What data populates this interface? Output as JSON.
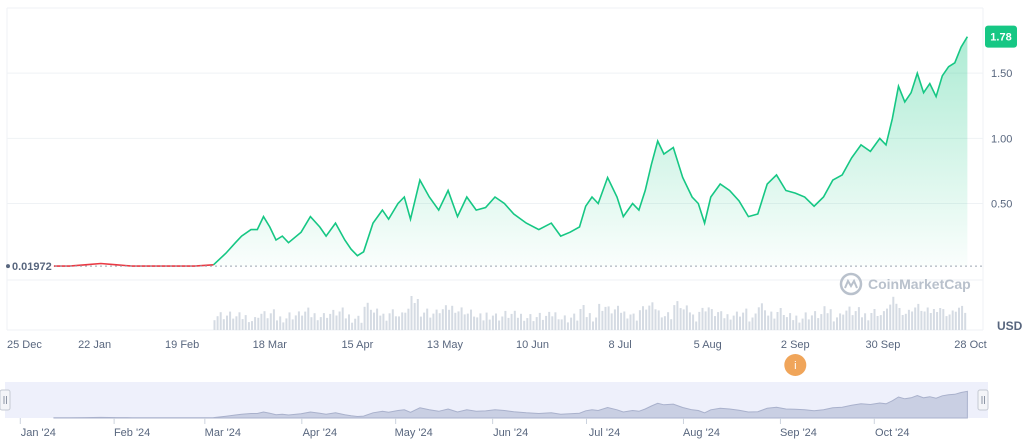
{
  "watermark": "CoinMarketCap",
  "colors": {
    "up": "#16c784",
    "down": "#ea3943",
    "grid": "#eff2f5",
    "volume": "#d5dbe3",
    "navigator_bg": "#eef0fb",
    "info_badge": "#f0a55a"
  },
  "info_badge_icon": "i",
  "info_badge_date": "2 Sep",
  "chart_data": {
    "type": "area",
    "unit": "USD",
    "start_price_label": "0.01972",
    "current_price_label": "1.78",
    "current_price": 1.78,
    "reference_price": 0.01972,
    "y_ticks": [
      "0.50",
      "1.00",
      "1.50"
    ],
    "y_tick_values": [
      0.5,
      1.0,
      1.5
    ],
    "ylim": [
      -0.47,
      2.0
    ],
    "x_tick_labels": [
      "25 Dec",
      "22 Jan",
      "19 Feb",
      "18 Mar",
      "15 Apr",
      "13 May",
      "10 Jun",
      "8 Jul",
      "5 Aug",
      "2 Sep",
      "30 Sep",
      "28 Oct"
    ],
    "x_tick_days": [
      0,
      28,
      56,
      84,
      112,
      140,
      168,
      196,
      224,
      252,
      280,
      308
    ],
    "x_range_days": [
      0,
      312
    ],
    "navigator_labels": [
      "Jan '24",
      "Feb '24",
      "Mar '24",
      "Apr '24",
      "May '24",
      "Jun '24",
      "Jul '24",
      "Aug '24",
      "Sep '24",
      "Oct '24"
    ],
    "navigator_days": [
      10,
      40,
      69,
      100,
      130,
      161,
      191,
      222,
      253,
      283
    ],
    "series": [
      {
        "points": [
          [
            15,
            0.02
          ],
          [
            20,
            0.02
          ],
          [
            25,
            0.03
          ],
          [
            30,
            0.04
          ],
          [
            35,
            0.03
          ],
          [
            40,
            0.02
          ],
          [
            45,
            0.02
          ],
          [
            50,
            0.02
          ],
          [
            55,
            0.02
          ],
          [
            60,
            0.02
          ],
          [
            66,
            0.03
          ],
          [
            70,
            0.12
          ],
          [
            73,
            0.2
          ],
          [
            75,
            0.25
          ],
          [
            78,
            0.3
          ],
          [
            80,
            0.3
          ],
          [
            82,
            0.4
          ],
          [
            84,
            0.32
          ],
          [
            86,
            0.22
          ],
          [
            88,
            0.25
          ],
          [
            90,
            0.2
          ],
          [
            94,
            0.28
          ],
          [
            97,
            0.4
          ],
          [
            100,
            0.32
          ],
          [
            102,
            0.25
          ],
          [
            105,
            0.35
          ],
          [
            108,
            0.22
          ],
          [
            110,
            0.15
          ],
          [
            112,
            0.1
          ],
          [
            114,
            0.13
          ],
          [
            117,
            0.35
          ],
          [
            120,
            0.45
          ],
          [
            122,
            0.38
          ],
          [
            125,
            0.5
          ],
          [
            127,
            0.55
          ],
          [
            129,
            0.38
          ],
          [
            132,
            0.68
          ],
          [
            135,
            0.55
          ],
          [
            138,
            0.45
          ],
          [
            141,
            0.6
          ],
          [
            144,
            0.4
          ],
          [
            147,
            0.55
          ],
          [
            150,
            0.45
          ],
          [
            153,
            0.47
          ],
          [
            156,
            0.55
          ],
          [
            159,
            0.5
          ],
          [
            162,
            0.42
          ],
          [
            166,
            0.35
          ],
          [
            170,
            0.3
          ],
          [
            174,
            0.35
          ],
          [
            177,
            0.25
          ],
          [
            180,
            0.28
          ],
          [
            183,
            0.32
          ],
          [
            185,
            0.48
          ],
          [
            187,
            0.55
          ],
          [
            189,
            0.5
          ],
          [
            192,
            0.7
          ],
          [
            195,
            0.55
          ],
          [
            197,
            0.4
          ],
          [
            200,
            0.5
          ],
          [
            202,
            0.45
          ],
          [
            204,
            0.6
          ],
          [
            206,
            0.8
          ],
          [
            208,
            0.98
          ],
          [
            210,
            0.88
          ],
          [
            213,
            0.93
          ],
          [
            216,
            0.7
          ],
          [
            219,
            0.55
          ],
          [
            221,
            0.5
          ],
          [
            223,
            0.35
          ],
          [
            225,
            0.55
          ],
          [
            228,
            0.65
          ],
          [
            231,
            0.6
          ],
          [
            234,
            0.52
          ],
          [
            237,
            0.4
          ],
          [
            240,
            0.42
          ],
          [
            243,
            0.65
          ],
          [
            246,
            0.72
          ],
          [
            249,
            0.6
          ],
          [
            252,
            0.58
          ],
          [
            255,
            0.55
          ],
          [
            258,
            0.48
          ],
          [
            261,
            0.55
          ],
          [
            264,
            0.68
          ],
          [
            267,
            0.72
          ],
          [
            270,
            0.85
          ],
          [
            273,
            0.95
          ],
          [
            276,
            0.9
          ],
          [
            279,
            1.0
          ],
          [
            281,
            0.95
          ],
          [
            283,
            1.15
          ],
          [
            285,
            1.4
          ],
          [
            287,
            1.28
          ],
          [
            289,
            1.35
          ],
          [
            291,
            1.5
          ],
          [
            293,
            1.35
          ],
          [
            295,
            1.42
          ],
          [
            297,
            1.32
          ],
          [
            299,
            1.48
          ],
          [
            301,
            1.55
          ],
          [
            303,
            1.58
          ],
          [
            305,
            1.7
          ],
          [
            307,
            1.78
          ]
        ]
      }
    ]
  }
}
